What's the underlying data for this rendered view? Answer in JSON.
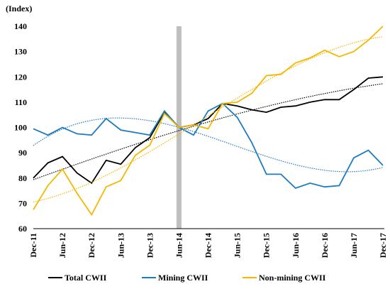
{
  "chart_data": {
    "type": "line",
    "y_label": "(Index)",
    "categories": [
      "Dec-11",
      null,
      "Jun-12",
      null,
      "Dec-12",
      null,
      "Jun-13",
      null,
      "Dec-13",
      null,
      "Jun-14",
      null,
      "Dec-14",
      null,
      "Jun-15",
      null,
      "Dec-15",
      null,
      "Jun-16",
      null,
      "Dec-16",
      null,
      "Jun-17",
      null,
      "Dec-17"
    ],
    "series": [
      {
        "name": "Total CWII",
        "color": "#000000",
        "values": [
          80,
          86,
          88.5,
          82,
          78,
          87,
          85.5,
          92,
          96,
          106,
          100,
          101,
          103.5,
          109.5,
          108.5,
          107,
          106,
          108,
          108.5,
          110,
          111,
          111,
          115,
          119.5,
          120
        ]
      },
      {
        "name": "Mining CWII",
        "color": "#1f7bbf",
        "values": [
          99.5,
          97,
          100,
          97.5,
          97,
          103.5,
          99,
          98,
          97,
          106.5,
          100,
          97,
          106.5,
          109.5,
          104,
          94,
          81.5,
          81.5,
          76,
          78,
          76.5,
          77,
          88,
          91,
          85
        ]
      },
      {
        "name": "Non-mining CWII",
        "color": "#f5b800",
        "values": [
          67.5,
          77,
          83.5,
          74,
          65.5,
          76.5,
          79,
          89,
          93,
          105.5,
          100,
          101,
          99.5,
          109.5,
          110,
          113.5,
          120.5,
          121,
          125.5,
          127.5,
          130.5,
          128,
          130,
          134.5,
          140
        ]
      }
    ],
    "ylim": [
      60,
      140
    ],
    "yticks": [
      60,
      70,
      80,
      90,
      100,
      110,
      120,
      130,
      140
    ],
    "grid": false,
    "highlight": "Jun-14",
    "trendline": {
      "type": "polynomial",
      "order": 3
    },
    "legend": "bottom"
  }
}
